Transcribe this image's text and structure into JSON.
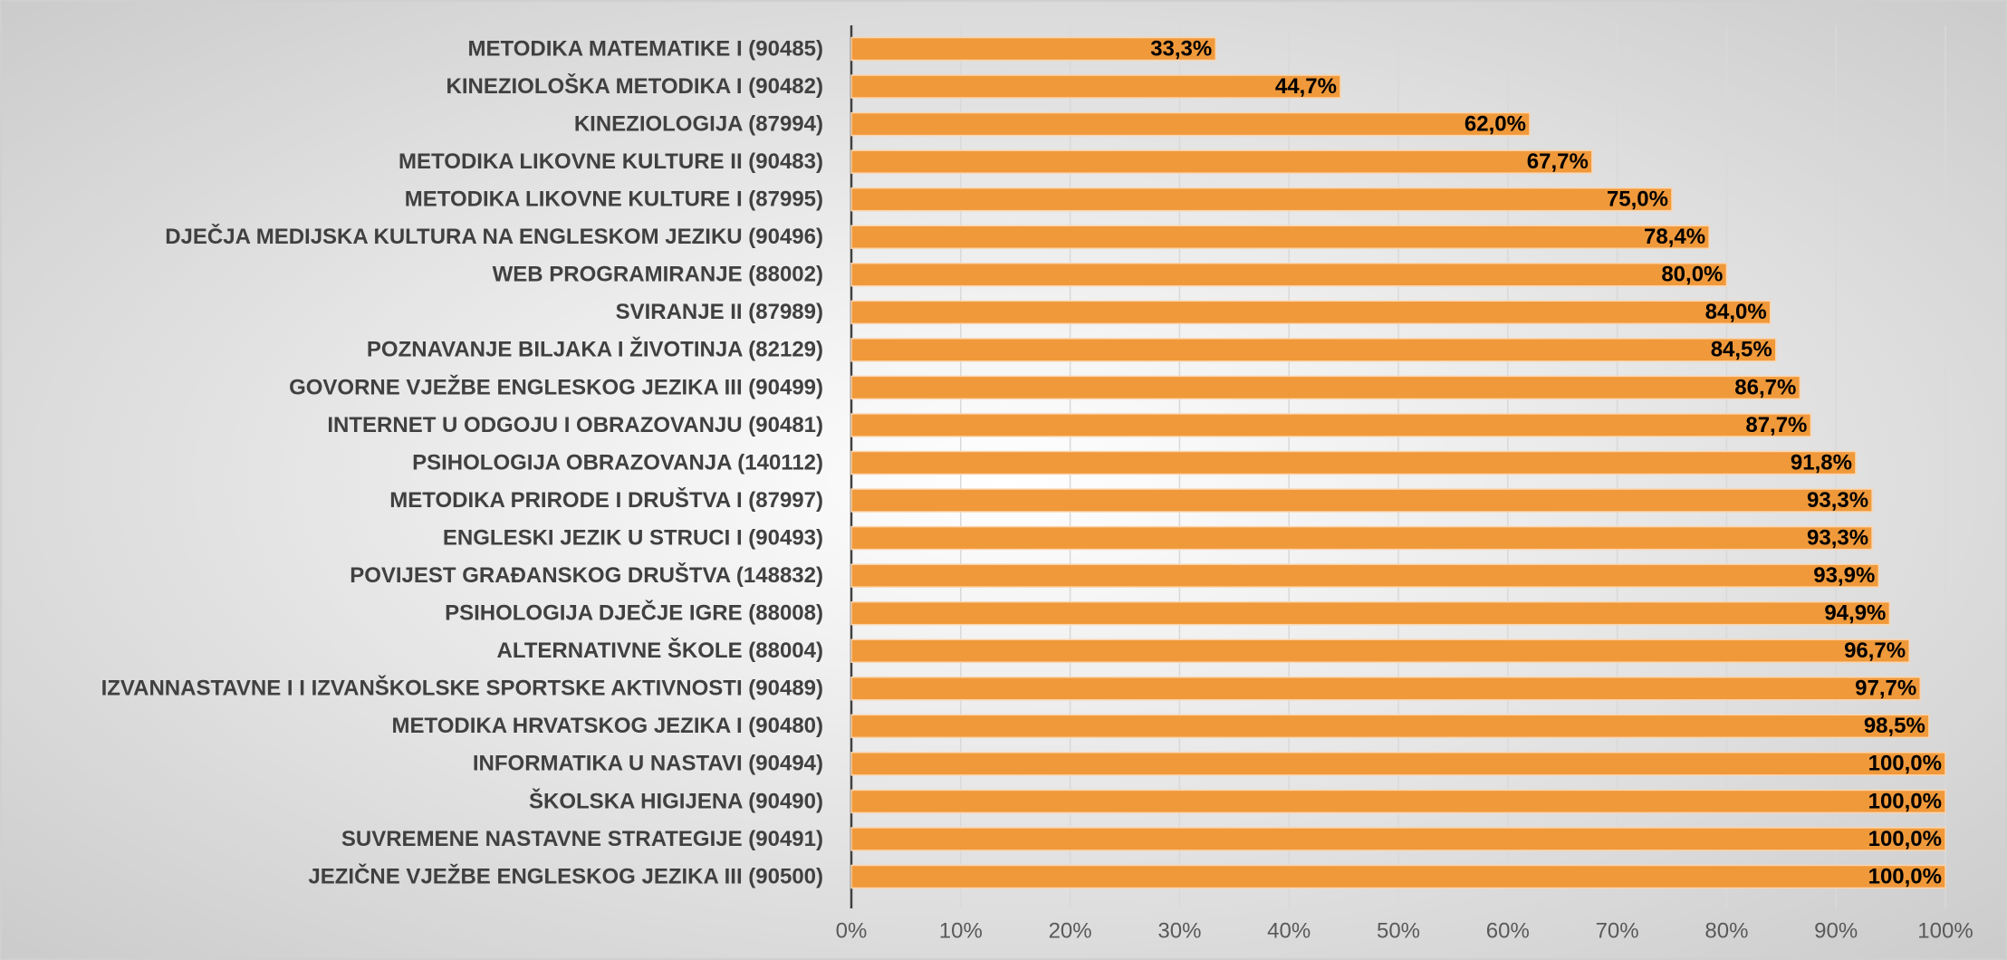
{
  "chart_data": {
    "type": "bar",
    "orientation": "horizontal",
    "categories": [
      "METODIKA MATEMATIKE I (90485)",
      "KINEZIOLOŠKA METODIKA I (90482)",
      "KINEZIOLOGIJA (87994)",
      "METODIKA LIKOVNE KULTURE II (90483)",
      "METODIKA LIKOVNE KULTURE I (87995)",
      "DJEČJA MEDIJSKA KULTURA NA ENGLESKOM JEZIKU (90496)",
      "WEB PROGRAMIRANJE (88002)",
      "SVIRANJE II (87989)",
      "POZNAVANJE BILJAKA I ŽIVOTINJA (82129)",
      "GOVORNE VJEŽBE ENGLESKOG JEZIKA III (90499)",
      "INTERNET U ODGOJU I OBRAZOVANJU (90481)",
      "PSIHOLOGIJA OBRAZOVANJA (140112)",
      "METODIKA PRIRODE I DRUŠTVA I (87997)",
      "ENGLESKI JEZIK U STRUCI I (90493)",
      "POVIJEST GRAĐANSKOG DRUŠTVA (148832)",
      "PSIHOLOGIJA DJEČJE IGRE (88008)",
      "ALTERNATIVNE ŠKOLE (88004)",
      "IZVANNASTAVNE I I IZVANŠKOLSKE SPORTSKE AKTIVNOSTI (90489)",
      "METODIKA HRVATSKOG JEZIKA I (90480)",
      "INFORMATIKA U NASTAVI (90494)",
      "ŠKOLSKA HIGIJENA (90490)",
      "SUVREMENE NASTAVNE STRATEGIJE (90491)",
      "JEZIČNE VJEŽBE ENGLESKOG JEZIKA III (90500)"
    ],
    "values": [
      33.3,
      44.7,
      62.0,
      67.7,
      75.0,
      78.4,
      80.0,
      84.0,
      84.5,
      86.7,
      87.7,
      91.8,
      93.3,
      93.3,
      93.9,
      94.9,
      96.7,
      97.7,
      98.5,
      100.0,
      100.0,
      100.0,
      100.0
    ],
    "value_labels": [
      "33,3%",
      "44,7%",
      "62,0%",
      "67,7%",
      "75,0%",
      "78,4%",
      "80,0%",
      "84,0%",
      "84,5%",
      "86,7%",
      "87,7%",
      "91,8%",
      "93,3%",
      "93,3%",
      "93,9%",
      "94,9%",
      "96,7%",
      "97,7%",
      "98,5%",
      "100,0%",
      "100,0%",
      "100,0%",
      "100,0%"
    ],
    "color": "#f0993a",
    "xlim": [
      0,
      100
    ],
    "xticks": [
      {
        "value": 0,
        "label": "0%"
      },
      {
        "value": 10,
        "label": "10%"
      },
      {
        "value": 20,
        "label": "20%"
      },
      {
        "value": 30,
        "label": "30%"
      },
      {
        "value": 40,
        "label": "40%"
      },
      {
        "value": 50,
        "label": "50%"
      },
      {
        "value": 60,
        "label": "60%"
      },
      {
        "value": 70,
        "label": "70%"
      },
      {
        "value": 80,
        "label": "80%"
      },
      {
        "value": 90,
        "label": "90%"
      },
      {
        "value": 100,
        "label": "100%"
      }
    ],
    "grid": true
  }
}
